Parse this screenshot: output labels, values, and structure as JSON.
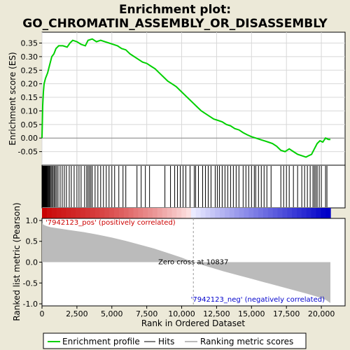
{
  "title_line1": "Enrichment plot:",
  "title_line2": "GO_CHROMATIN_ASSEMBLY_OR_DISASSEMBLY",
  "chart_data": {
    "type": "line",
    "es_panel": {
      "ylabel": "Enrichment score (ES)",
      "ylim": [
        -0.1,
        0.39
      ],
      "yticks": [
        -0.05,
        0.0,
        0.05,
        0.1,
        0.15,
        0.2,
        0.25,
        0.3,
        0.35
      ],
      "ytick_labels": [
        "-0.05",
        "0.00",
        "0.05",
        "0.10",
        "0.15",
        "0.20",
        "0.25",
        "0.30",
        "0.35"
      ],
      "grid": true,
      "color": "#00d000",
      "x": [
        0,
        50,
        100,
        150,
        250,
        400,
        550,
        700,
        850,
        1000,
        1200,
        1500,
        1800,
        2000,
        2200,
        2500,
        2800,
        3100,
        3300,
        3600,
        3900,
        4200,
        4500,
        4800,
        5100,
        5400,
        5700,
        6000,
        6300,
        6600,
        6900,
        7200,
        7500,
        7800,
        8100,
        8400,
        8700,
        9000,
        9300,
        9600,
        9900,
        10200,
        10500,
        10800,
        11100,
        11400,
        11700,
        12000,
        12300,
        12600,
        12900,
        13200,
        13500,
        13800,
        14100,
        14400,
        14700,
        15000,
        15300,
        15600,
        15900,
        16200,
        16500,
        16800,
        17100,
        17400,
        17700,
        18000,
        18300,
        18600,
        18900,
        19100,
        19300,
        19500,
        19700,
        19900,
        20100,
        20300,
        20500,
        20650
      ],
      "y": [
        0.0,
        0.12,
        0.17,
        0.2,
        0.22,
        0.24,
        0.27,
        0.3,
        0.31,
        0.33,
        0.34,
        0.34,
        0.335,
        0.35,
        0.36,
        0.355,
        0.345,
        0.34,
        0.36,
        0.365,
        0.355,
        0.36,
        0.355,
        0.35,
        0.345,
        0.34,
        0.33,
        0.325,
        0.31,
        0.3,
        0.29,
        0.28,
        0.275,
        0.265,
        0.255,
        0.24,
        0.225,
        0.21,
        0.2,
        0.19,
        0.175,
        0.16,
        0.145,
        0.13,
        0.115,
        0.1,
        0.09,
        0.08,
        0.07,
        0.065,
        0.06,
        0.05,
        0.045,
        0.035,
        0.03,
        0.02,
        0.012,
        0.005,
        0.0,
        -0.005,
        -0.01,
        -0.015,
        -0.02,
        -0.03,
        -0.045,
        -0.05,
        -0.04,
        -0.05,
        -0.06,
        -0.065,
        -0.07,
        -0.065,
        -0.06,
        -0.04,
        -0.02,
        -0.01,
        -0.015,
        0.0,
        -0.005,
        -0.005
      ]
    },
    "hits_panel": {
      "positions": [
        30,
        60,
        90,
        110,
        140,
        170,
        200,
        230,
        260,
        300,
        340,
        380,
        420,
        470,
        520,
        580,
        650,
        720,
        800,
        880,
        960,
        1050,
        1150,
        1300,
        1450,
        1600,
        1750,
        1950,
        2100,
        2300,
        2500,
        2650,
        2800,
        3050,
        3200,
        3300,
        3400,
        3500,
        3600,
        3800,
        4000,
        4200,
        4400,
        4600,
        4800,
        5000,
        5200,
        5500,
        5800,
        6000,
        6800,
        7100,
        7400,
        7700,
        8800,
        9200,
        9500,
        9700,
        9900,
        10100,
        10300,
        10600,
        10900,
        11000,
        11200,
        11500,
        11700,
        11900,
        12100,
        12400,
        12550,
        12700,
        12900,
        13100,
        13300,
        13500,
        13700,
        13900,
        14100,
        14400,
        14600,
        14800,
        15000,
        15200,
        15300,
        15500,
        15700,
        15900,
        16100,
        16400,
        17100,
        17300,
        17500,
        17700,
        18000,
        18300,
        18600,
        18800,
        19000,
        19200,
        19400,
        19500,
        19600,
        19700,
        19850,
        20000,
        20300,
        20400
      ]
    },
    "ranking_panel": {
      "ylabel": "Ranked list metric (Pearson)",
      "ylim": [
        -1.05,
        1.05
      ],
      "yticks": [
        -1.0,
        -0.5,
        0.0,
        0.5,
        1.0
      ],
      "ytick_labels": [
        "-1.0",
        "-0.5",
        "0.0",
        "0.5",
        "1.0"
      ],
      "x": [
        0,
        100,
        300,
        600,
        1000,
        2000,
        3000,
        4000,
        5000,
        6000,
        7000,
        8000,
        9000,
        10000,
        10837,
        12000,
        13000,
        14000,
        15000,
        16000,
        17000,
        18000,
        19000,
        19800,
        20300,
        20500,
        20650
      ],
      "y": [
        0.93,
        0.9,
        0.87,
        0.84,
        0.82,
        0.77,
        0.72,
        0.66,
        0.59,
        0.51,
        0.42,
        0.33,
        0.22,
        0.11,
        0.0,
        -0.12,
        -0.22,
        -0.31,
        -0.4,
        -0.49,
        -0.58,
        -0.67,
        -0.76,
        -0.84,
        -0.9,
        -0.95,
        -0.98
      ],
      "zero_cross_label": "Zero cross at 10837",
      "zero_cross_x": 10837,
      "pos_label": "'7942123_pos' (positively correlated)",
      "neg_label": "'7942123_neg' (negatively correlated)"
    },
    "xaxis": {
      "label": "Rank in Ordered Dataset",
      "xlim": [
        0,
        21700
      ],
      "xticks": [
        0,
        2500,
        5000,
        7500,
        10000,
        12500,
        15000,
        17500,
        20000
      ],
      "xtick_labels": [
        "0",
        "2,500",
        "5,000",
        "7,500",
        "10,000",
        "12,500",
        "15,000",
        "17,500",
        "20,000"
      ]
    },
    "legend": {
      "placement": "bottom",
      "items": [
        {
          "label": "Enrichment profile",
          "color": "#00d000"
        },
        {
          "label": "Hits",
          "color": "#000000"
        },
        {
          "label": "Ranking metric scores",
          "color": "#bbbbbb"
        }
      ]
    }
  }
}
